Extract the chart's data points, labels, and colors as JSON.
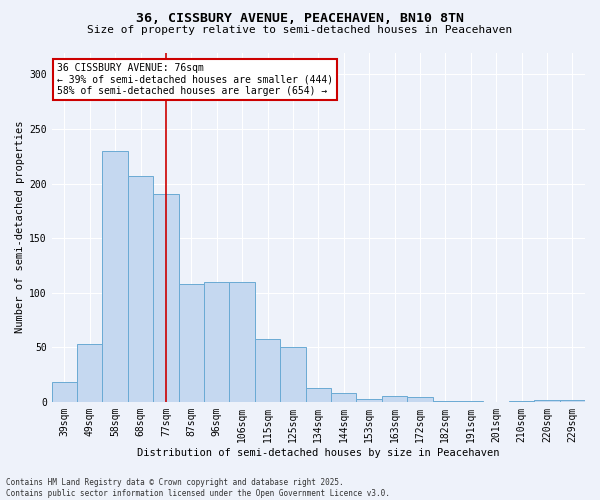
{
  "title1": "36, CISSBURY AVENUE, PEACEHAVEN, BN10 8TN",
  "title2": "Size of property relative to semi-detached houses in Peacehaven",
  "xlabel": "Distribution of semi-detached houses by size in Peacehaven",
  "ylabel": "Number of semi-detached properties",
  "categories": [
    "39sqm",
    "49sqm",
    "58sqm",
    "68sqm",
    "77sqm",
    "87sqm",
    "96sqm",
    "106sqm",
    "115sqm",
    "125sqm",
    "134sqm",
    "144sqm",
    "153sqm",
    "163sqm",
    "172sqm",
    "182sqm",
    "191sqm",
    "201sqm",
    "210sqm",
    "220sqm",
    "229sqm"
  ],
  "values": [
    18,
    53,
    230,
    207,
    190,
    108,
    110,
    110,
    58,
    50,
    13,
    8,
    3,
    5,
    4,
    1,
    1,
    0,
    1,
    2,
    2
  ],
  "bar_color": "#c5d8f0",
  "bar_edge_color": "#6aaad4",
  "ref_line_color": "#cc0000",
  "ref_line_x": 4.0,
  "ref_line_label": "36 CISSBURY AVENUE: 76sqm",
  "annotation_smaller": "← 39% of semi-detached houses are smaller (444)",
  "annotation_larger": "58% of semi-detached houses are larger (654) →",
  "annotation_box_color": "#ffffff",
  "annotation_box_edge": "#cc0000",
  "ylim": [
    0,
    320
  ],
  "yticks": [
    0,
    50,
    100,
    150,
    200,
    250,
    300
  ],
  "footer1": "Contains HM Land Registry data © Crown copyright and database right 2025.",
  "footer2": "Contains public sector information licensed under the Open Government Licence v3.0.",
  "bg_color": "#eef2fa",
  "grid_color": "#ffffff",
  "title1_fontsize": 9.5,
  "title2_fontsize": 8,
  "axis_label_fontsize": 7.5,
  "tick_fontsize": 7,
  "footer_fontsize": 5.5,
  "annot_fontsize": 7
}
